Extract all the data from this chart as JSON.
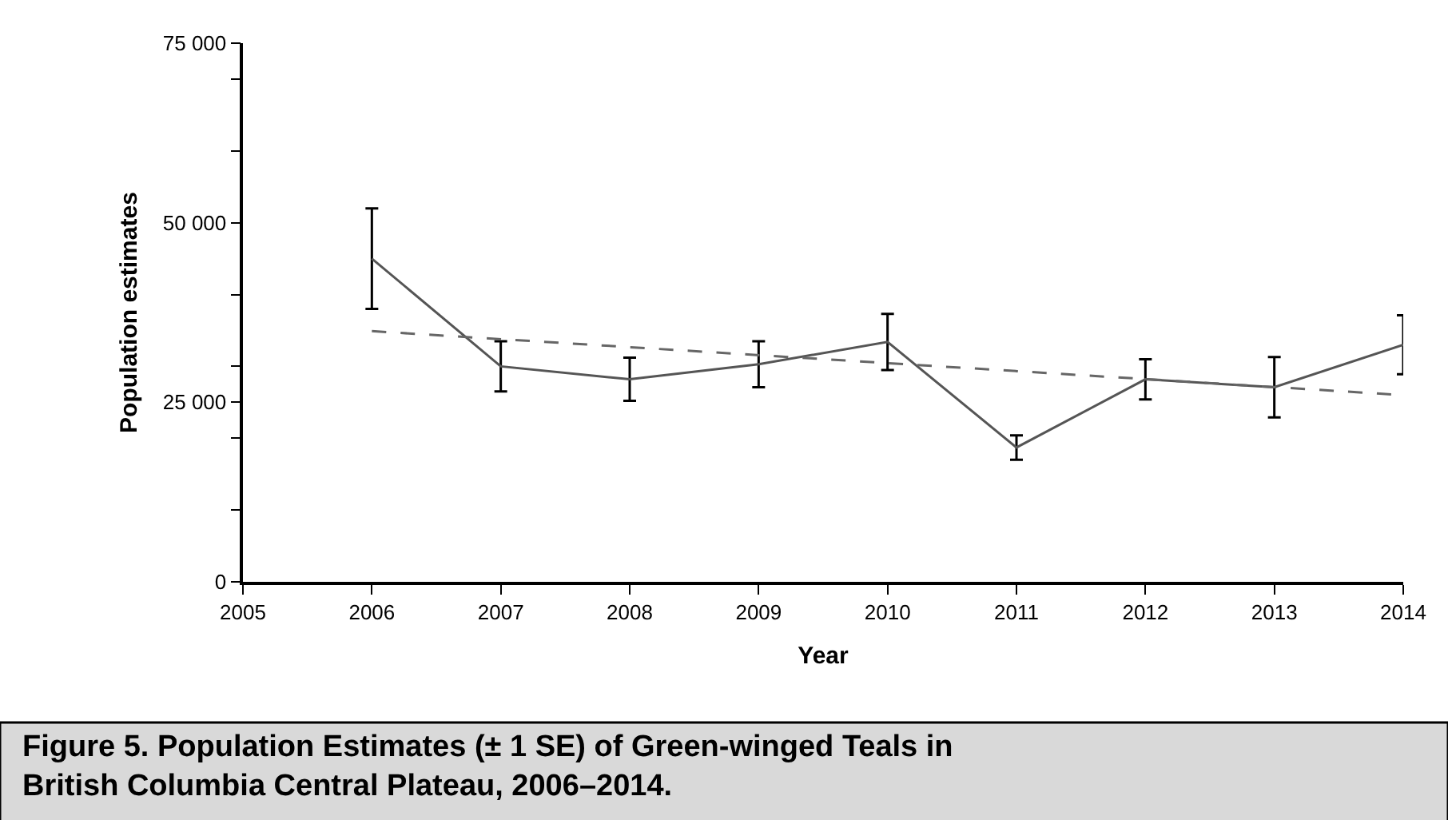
{
  "chart_data": {
    "type": "line",
    "xlabel": "Year",
    "ylabel": "Population estimates",
    "x": [
      2006,
      2007,
      2008,
      2009,
      2010,
      2011,
      2012,
      2013,
      2014
    ],
    "series": [
      {
        "color": "#555555",
        "values": [
          45000,
          30000,
          28200,
          30300,
          33400,
          18700,
          28200,
          27100,
          33000
        ],
        "errors": [
          7000,
          3500,
          3000,
          3200,
          3900,
          1700,
          2800,
          4200,
          4100
        ],
        "line_style": "solid"
      },
      {
        "type": "line",
        "color": "#666666",
        "x": [
          2006,
          2014
        ],
        "values": [
          34900,
          26000
        ],
        "line_style": "dashed"
      }
    ],
    "xlim": [
      2005,
      2014
    ],
    "xticks": [
      2005,
      2006,
      2007,
      2008,
      2009,
      2010,
      2011,
      2012,
      2013,
      2014
    ],
    "ylim": [
      0,
      75000
    ],
    "yticks": [
      0,
      {
        "value": 10000,
        "label": null
      },
      {
        "value": 20000,
        "label": null
      },
      {
        "value": 25000,
        "label": "25 000"
      },
      {
        "value": 30000,
        "label": null
      },
      {
        "value": 40000,
        "label": null
      },
      {
        "value": 50000,
        "label": "50 000"
      },
      {
        "value": 60000,
        "label": null
      },
      {
        "value": 70000,
        "label": null
      },
      {
        "value": 75000,
        "label": "75 000"
      }
    ],
    "marker": "none",
    "annotations": [
      "Figure 5. Population Estimates (± 1 SE) of Green-winged Teals in British Columbia Central Plateau, 2006–2014."
    ]
  }
}
